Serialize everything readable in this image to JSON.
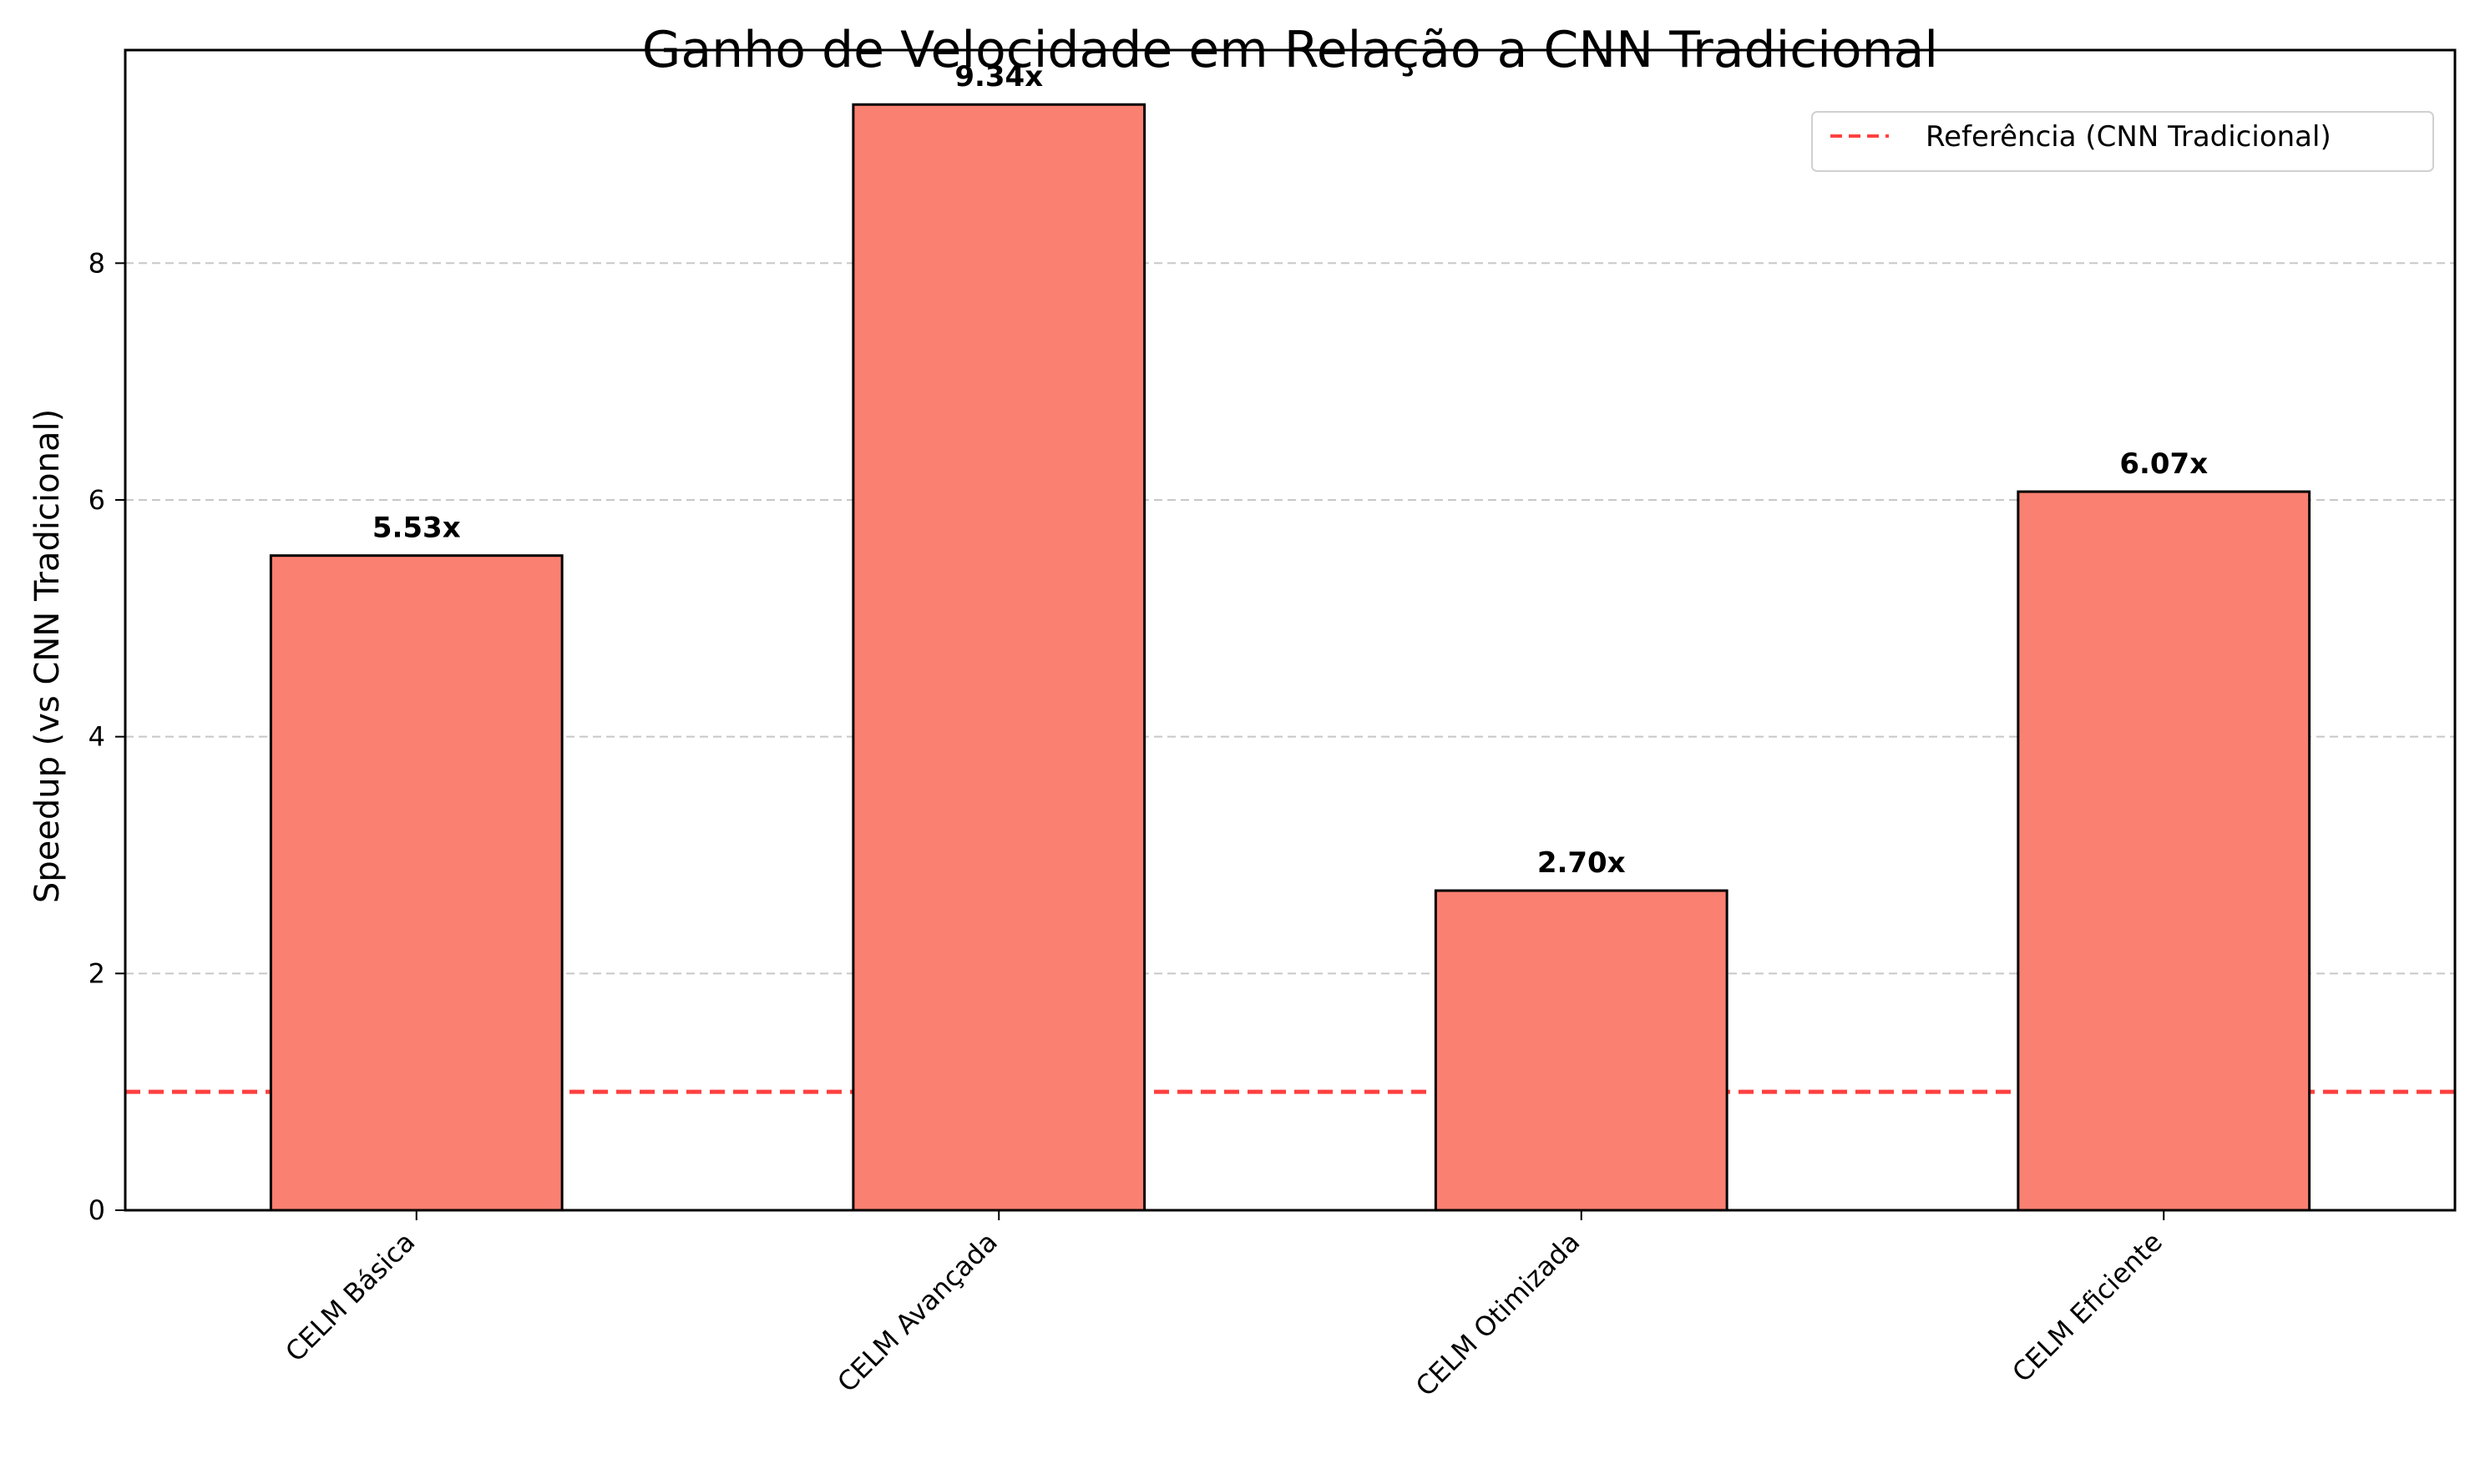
{
  "chart_data": {
    "type": "bar",
    "title": "Ganho de Velocidade em Relação a CNN Tradicional",
    "xlabel": "",
    "ylabel": "Speedup (vs CNN Tradicional)",
    "categories": [
      "CELM Básica",
      "CELM Avançada",
      "CELM Otimizada",
      "CELM Eficiente"
    ],
    "values": [
      5.53,
      9.34,
      2.7,
      6.07
    ],
    "data_labels": [
      "5.53x",
      "9.34x",
      "2.70x",
      "6.07x"
    ],
    "ylim": [
      0,
      9.8
    ],
    "yticks": [
      0,
      2,
      4,
      6,
      8
    ],
    "grid": "y-dashed",
    "reference_line": {
      "y": 1.0,
      "label": "Referência (CNN Tradicional)",
      "color": "#ff0000",
      "style": "dashed"
    },
    "legend_position": "top-right",
    "colors": {
      "bar_fill": "#fa8072",
      "bar_edge": "#000000",
      "grid": "#c8c8c8"
    }
  }
}
